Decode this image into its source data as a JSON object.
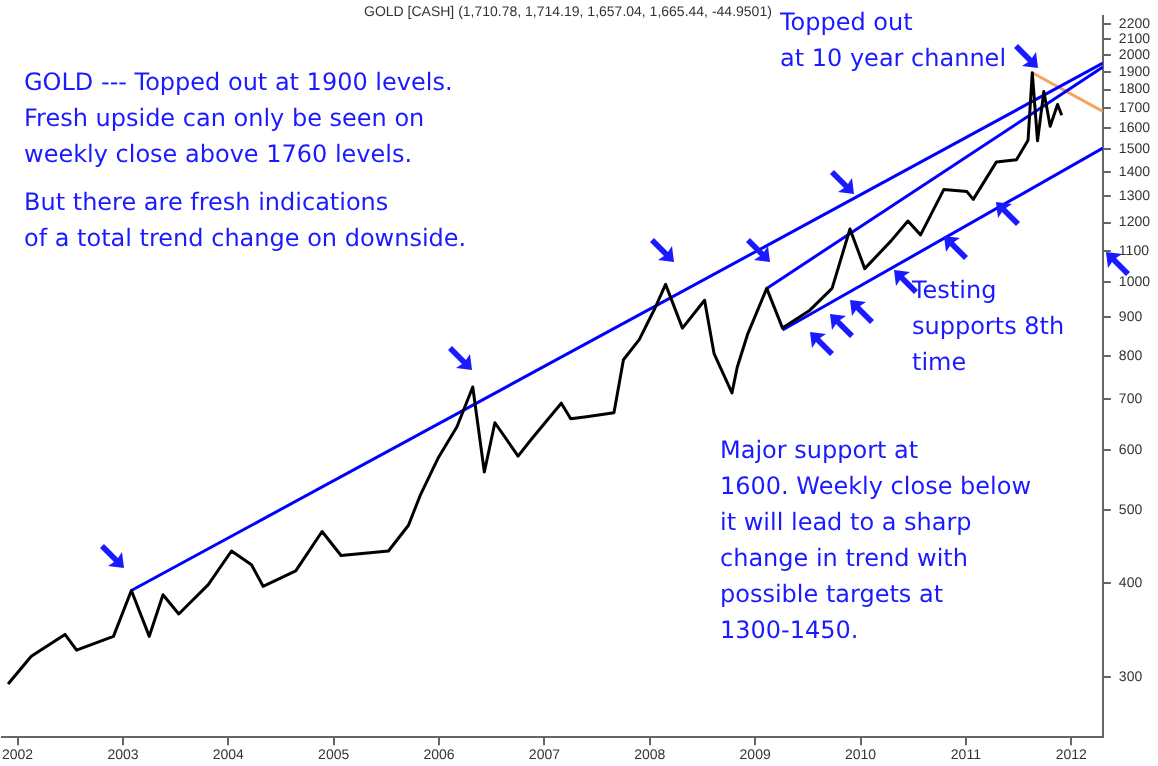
{
  "chart_data": {
    "type": "line",
    "title": "GOLD [CASH] (1,710.78, 1,714.19, 1,657.04, 1,665.44, -44.9501)",
    "series": [
      {
        "color": "#000000",
        "x": [
          2001.91,
          2002.13,
          2002.45,
          2002.56,
          2002.91,
          2003.08,
          2003.25,
          2003.38,
          2003.53,
          2003.81,
          2004.03,
          2004.22,
          2004.33,
          2004.64,
          2004.89,
          2005.07,
          2005.52,
          2005.71,
          2005.82,
          2005.99,
          2006.17,
          2006.32,
          2006.43,
          2006.53,
          2006.75,
          2006.88,
          2007.16,
          2007.25,
          2007.4,
          2007.66,
          2007.75,
          2007.9,
          2008.05,
          2008.15,
          2008.31,
          2008.52,
          2008.61,
          2008.78,
          2008.83,
          2008.93,
          2009.11,
          2009.26,
          2009.52,
          2009.73,
          2009.9,
          2010.04,
          2010.29,
          2010.45,
          2010.57,
          2010.79,
          2011.01,
          2011.07,
          2011.29,
          2011.48,
          2011.59,
          2011.63,
          2011.68,
          2011.74,
          2011.8,
          2011.87,
          2011.91
        ],
        "values": [
          294,
          320,
          342,
          326,
          340,
          391,
          340,
          386,
          364,
          398,
          441,
          423,
          396,
          415,
          468,
          435,
          441,
          477,
          522,
          585,
          644,
          727,
          561,
          652,
          589,
          621,
          692,
          660,
          664,
          672,
          790,
          840,
          925,
          994,
          870,
          947,
          805,
          714,
          772,
          855,
          982,
          870,
          919,
          982,
          1177,
          1043,
          1135,
          1206,
          1156,
          1327,
          1319,
          1288,
          1444,
          1453,
          1543,
          1895,
          1540,
          1790,
          1610,
          1720,
          1665
        ]
      },
      {
        "color": "#0000ff",
        "x": [
          2003.08,
          2012.3
        ],
        "values": [
          391,
          1951
        ]
      },
      {
        "color": "#0000ff",
        "x": [
          2009.11,
          2012.3
        ],
        "values": [
          982,
          1928
        ]
      },
      {
        "color": "#0000ff",
        "x": [
          2009.26,
          2012.3
        ],
        "values": [
          865,
          1506
        ]
      },
      {
        "color": "#f4a460",
        "x": [
          2011.63,
          2012.3
        ],
        "values": [
          1895,
          1684
        ]
      }
    ],
    "log": true,
    "xlim": [
      2001.85,
      2012.3
    ],
    "xticks": [
      2002,
      2003,
      2004,
      2005,
      2006,
      2007,
      2008,
      2009,
      2010,
      2011,
      2012
    ],
    "ylim": [
      250,
      2250
    ],
    "yticks": [
      300,
      400,
      500,
      600,
      700,
      800,
      900,
      1000,
      1100,
      1200,
      1300,
      1400,
      1500,
      1600,
      1700,
      1800,
      1900,
      2000,
      2100,
      2200
    ],
    "grid": false,
    "legend": false,
    "marker": "none",
    "annotations": [
      "GOLD --- Topped out at 1900 levels.\nFresh upside can only be seen on\nweekly close above 1760 levels.",
      "But there are fresh indications\nof a total trend change on downside.",
      "Topped out\nat 10 year channel",
      "Testing\nsupports 8th\ntime",
      "Major support at\n1600. Weekly close below\nit will lead to a sharp\nchange in trend with\npossible targets at\n1300-1450."
    ]
  }
}
